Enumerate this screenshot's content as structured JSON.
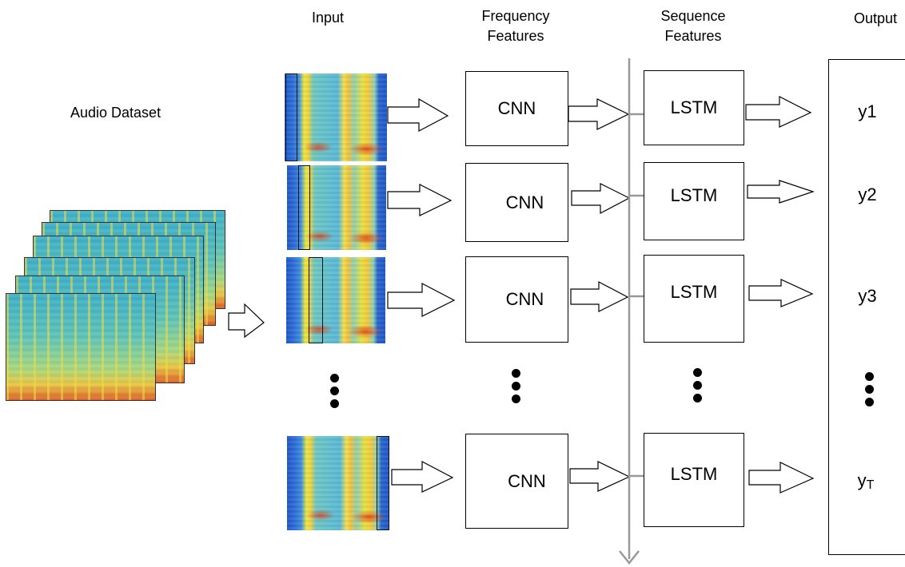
{
  "headers": {
    "input": "Input",
    "frequency": [
      "Frequency",
      "Features"
    ],
    "sequence": [
      "Sequence",
      "Features"
    ],
    "output": "Output"
  },
  "dataset_label": "Audio Dataset",
  "cnn_label": "CNN",
  "lstm_label": "LSTM",
  "outputs": [
    "y1",
    "y2",
    "y3"
  ],
  "output_last": {
    "base": "y",
    "sub": "T"
  },
  "colors": {
    "stroke": "#000000",
    "timeline": "#999999",
    "spec_low": "#1f57c8",
    "spec_high": "#e03c14"
  }
}
